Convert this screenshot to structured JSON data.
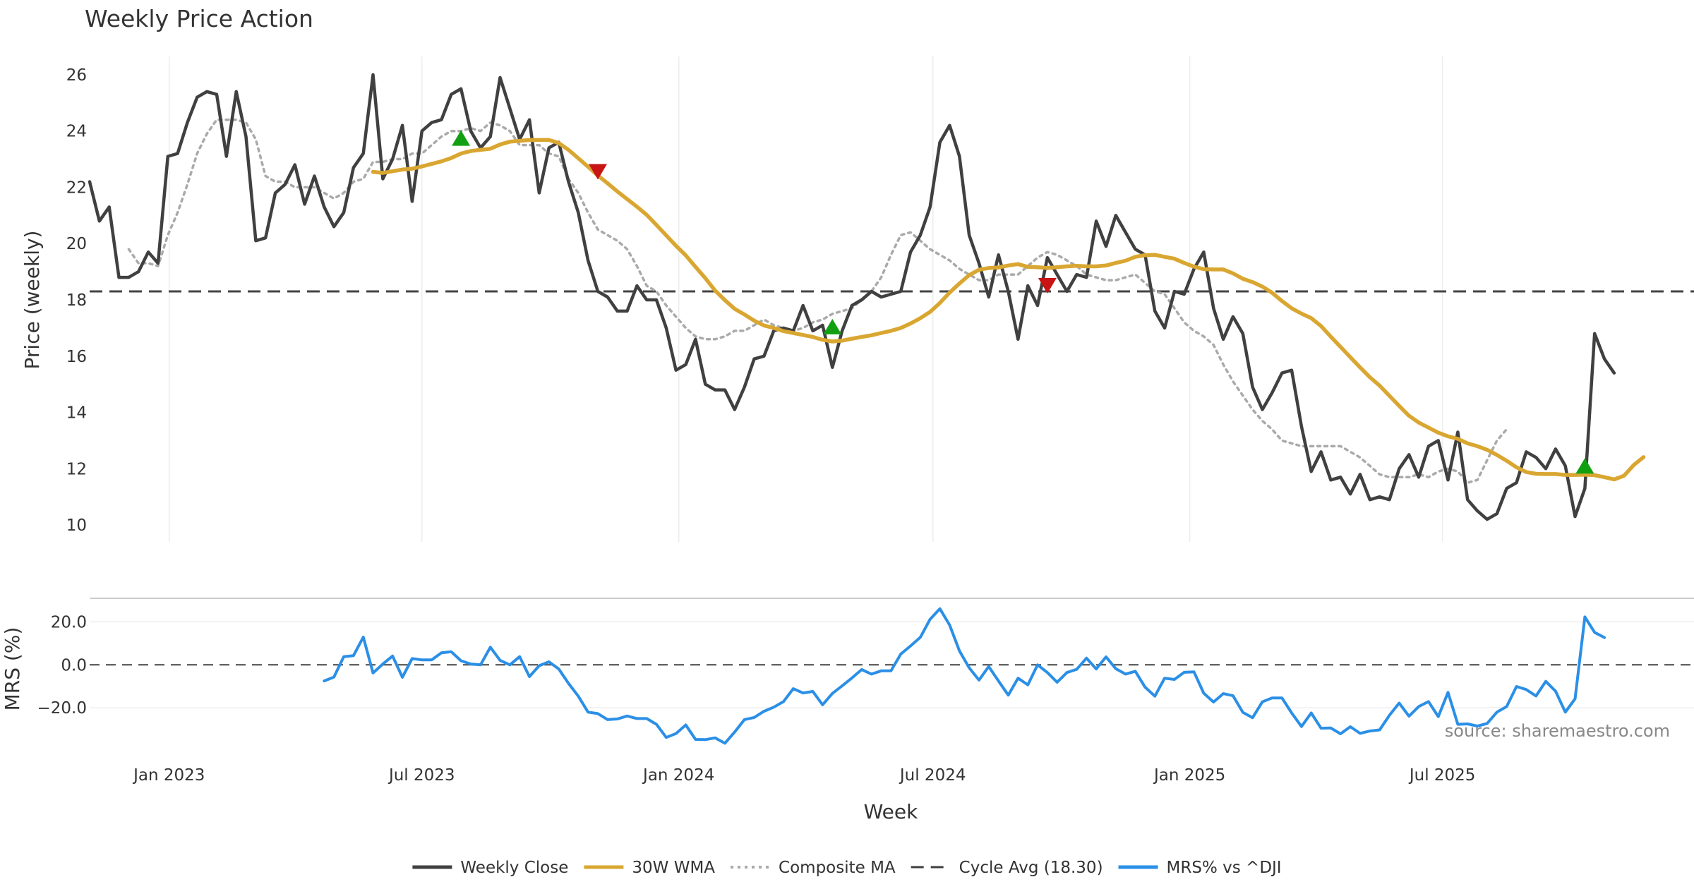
{
  "chart_data": [
    {
      "type": "line",
      "title": "Weekly Price Action",
      "ylabel": "Price (weekly)",
      "ylim": [
        9.4,
        27.0
      ],
      "yticks": [
        10,
        12,
        14,
        16,
        18,
        20,
        22,
        24,
        26
      ],
      "x_start": "2022-11-05",
      "x_step_days": 7,
      "xlim": [
        "2022-11-05",
        "2025-12-13"
      ],
      "xticks": [
        {
          "date": "2023-01-01",
          "label": "Jan 2023"
        },
        {
          "date": "2023-07-01",
          "label": "Jul 2023"
        },
        {
          "date": "2024-01-01",
          "label": "Jan 2024"
        },
        {
          "date": "2024-07-01",
          "label": "Jul 2024"
        },
        {
          "date": "2025-01-01",
          "label": "Jan 2025"
        },
        {
          "date": "2025-07-01",
          "label": "Jul 2025"
        }
      ],
      "cycle_avg": 18.3,
      "series": [
        {
          "name": "Weekly Close",
          "color": "#404040",
          "start_index": 0,
          "values": [
            22.2,
            20.8,
            21.3,
            18.8,
            18.8,
            19.0,
            19.7,
            19.3,
            23.1,
            23.2,
            24.3,
            25.2,
            25.4,
            25.3,
            23.1,
            25.4,
            23.8,
            20.1,
            20.2,
            21.8,
            22.1,
            22.8,
            21.4,
            22.4,
            21.3,
            20.6,
            21.1,
            22.7,
            23.2,
            26.0,
            22.3,
            23.0,
            24.2,
            21.5,
            24.0,
            24.3,
            24.4,
            25.3,
            25.5,
            24.0,
            23.4,
            23.8,
            25.9,
            24.8,
            23.7,
            24.4,
            21.8,
            23.4,
            23.6,
            22.2,
            21.1,
            19.4,
            18.3,
            18.1,
            17.6,
            17.6,
            18.5,
            18.0,
            18.0,
            17.0,
            15.5,
            15.7,
            16.6,
            15.0,
            14.8,
            14.8,
            14.1,
            14.9,
            15.9,
            16.0,
            16.9,
            17.0,
            16.9,
            17.8,
            16.9,
            17.1,
            15.6,
            16.9,
            17.8,
            18.0,
            18.3,
            18.1,
            18.2,
            18.3,
            19.7,
            20.3,
            21.3,
            23.6,
            24.2,
            23.1,
            20.3,
            19.3,
            18.1,
            19.6,
            18.3,
            16.6,
            18.5,
            17.8,
            19.5,
            18.9,
            18.3,
            18.9,
            18.8,
            20.8,
            19.9,
            21.0,
            20.4,
            19.8,
            19.6,
            17.6,
            17.0,
            18.3,
            18.2,
            19.1,
            19.7,
            17.7,
            16.6,
            17.4,
            16.8,
            14.9,
            14.1,
            14.7,
            15.4,
            15.5,
            13.5,
            11.9,
            12.6,
            11.6,
            11.7,
            11.1,
            11.8,
            10.9,
            11.0,
            10.9,
            12.0,
            12.5,
            11.7,
            12.8,
            13.0,
            11.6,
            13.3,
            10.9,
            10.5,
            10.2,
            10.4,
            11.3,
            11.5,
            12.6,
            12.4,
            12.0,
            12.7,
            12.1,
            10.3,
            11.3,
            16.8,
            15.9,
            15.4
          ]
        },
        {
          "name": "30W WMA",
          "color": "#d9a731",
          "start_index": 29,
          "values": [
            22.55,
            22.51,
            22.57,
            22.63,
            22.66,
            22.74,
            22.83,
            22.92,
            23.04,
            23.2,
            23.29,
            23.33,
            23.37,
            23.52,
            23.62,
            23.65,
            23.68,
            23.68,
            23.68,
            23.57,
            23.33,
            23.03,
            22.73,
            22.42,
            22.14,
            21.85,
            21.58,
            21.31,
            21.02,
            20.66,
            20.29,
            19.92,
            19.58,
            19.17,
            18.77,
            18.33,
            17.99,
            17.68,
            17.48,
            17.26,
            17.09,
            17.0,
            16.89,
            16.82,
            16.75,
            16.68,
            16.58,
            16.52,
            16.55,
            16.62,
            16.68,
            16.74,
            16.82,
            16.9,
            17.0,
            17.16,
            17.35,
            17.57,
            17.89,
            18.26,
            18.58,
            18.88,
            19.07,
            19.13,
            19.15,
            19.22,
            19.27,
            19.17,
            19.16,
            19.13,
            19.16,
            19.19,
            19.21,
            19.19,
            19.19,
            19.22,
            19.31,
            19.39,
            19.53,
            19.59,
            19.6,
            19.53,
            19.46,
            19.31,
            19.18,
            19.09,
            19.08,
            19.08,
            18.94,
            18.75,
            18.63,
            18.47,
            18.25,
            17.96,
            17.7,
            17.51,
            17.35,
            17.07,
            16.69,
            16.33,
            15.96,
            15.6,
            15.25,
            14.95,
            14.59,
            14.23,
            13.88,
            13.64,
            13.46,
            13.28,
            13.15,
            13.06,
            12.9,
            12.8,
            12.67,
            12.49,
            12.28,
            12.05,
            11.88,
            11.82,
            11.81,
            11.81,
            11.78,
            11.78,
            11.79,
            11.77,
            11.7,
            11.62,
            11.75,
            12.13,
            12.41
          ]
        },
        {
          "name": "Composite MA",
          "color": "#aaaaaa",
          "start_index": 4,
          "values": [
            19.8,
            19.3,
            19.3,
            19.2,
            20.3,
            21.1,
            22.1,
            23.2,
            23.9,
            24.4,
            24.4,
            24.4,
            24.3,
            23.7,
            22.4,
            22.2,
            22.2,
            22.0,
            22.0,
            22.0,
            21.8,
            21.6,
            21.8,
            22.2,
            22.3,
            22.9,
            22.9,
            23.0,
            23.0,
            23.2,
            23.2,
            23.5,
            23.8,
            24.0,
            24.0,
            24.1,
            24.0,
            24.3,
            24.2,
            24.0,
            23.5,
            23.5,
            23.5,
            23.2,
            23.1,
            22.3,
            21.8,
            21.1,
            20.5,
            20.3,
            20.1,
            19.8,
            19.2,
            18.5,
            18.3,
            17.8,
            17.4,
            17.0,
            16.7,
            16.6,
            16.6,
            16.7,
            16.9,
            16.9,
            17.1,
            17.3,
            17.1,
            17.0,
            16.9,
            17.0,
            17.2,
            17.3,
            17.5,
            17.6,
            17.7,
            18.0,
            18.3,
            18.8,
            19.6,
            20.3,
            20.4,
            20.1,
            19.8,
            19.6,
            19.4,
            19.1,
            18.9,
            18.7,
            18.7,
            18.9,
            18.9,
            18.9,
            19.2,
            19.5,
            19.7,
            19.6,
            19.4,
            19.2,
            18.9,
            18.8,
            18.7,
            18.7,
            18.8,
            18.9,
            18.6,
            18.3,
            18.2,
            17.7,
            17.2,
            16.9,
            16.7,
            16.4,
            15.7,
            15.1,
            14.6,
            14.1,
            13.7,
            13.4,
            13.0,
            12.9,
            12.8,
            12.8,
            12.8,
            12.8,
            12.8,
            12.6,
            12.4,
            12.1,
            11.8,
            11.7,
            11.7,
            11.7,
            11.8,
            11.7,
            11.9,
            12.0,
            11.9,
            11.5,
            11.6,
            12.3,
            13.0,
            13.4
          ]
        }
      ],
      "signals": [
        {
          "index": 38,
          "value": 23.75,
          "type": "buy",
          "color": "#12a012"
        },
        {
          "index": 52,
          "value": 22.55,
          "type": "sell",
          "color": "#c81414"
        },
        {
          "index": 76,
          "value": 17.05,
          "type": "buy",
          "color": "#12a012"
        },
        {
          "index": 98,
          "value": 18.5,
          "type": "sell",
          "color": "#c81414"
        },
        {
          "index": 153,
          "value": 12.1,
          "type": "buy",
          "color": "#12a012"
        }
      ]
    },
    {
      "type": "line",
      "ylabel": "MRS (%)",
      "xlabel": "Week",
      "ylim": [
        -38,
        28
      ],
      "yticks": [
        20,
        0,
        -20
      ],
      "ytick_labels": [
        "20.0",
        "0.0",
        "−20.0"
      ],
      "zero_line": 0,
      "series": [
        {
          "name": "MRS% vs ^DJI",
          "color": "#2b8fe6",
          "start_index": 24,
          "values": [
            -7.5,
            -5.7,
            3.8,
            4.3,
            12.9,
            -3.8,
            0.4,
            4.1,
            -5.8,
            2.9,
            2.3,
            2.3,
            5.6,
            6.1,
            1.9,
            0.4,
            0.0,
            8.2,
            2.1,
            0.0,
            3.8,
            -5.5,
            -0.4,
            1.4,
            -1.9,
            -8.6,
            -14.6,
            -22.0,
            -22.7,
            -25.5,
            -25.2,
            -23.8,
            -25.0,
            -25.0,
            -27.7,
            -33.8,
            -32.0,
            -28.0,
            -34.7,
            -34.8,
            -34.0,
            -36.5,
            -31.3,
            -25.5,
            -24.5,
            -21.6,
            -19.7,
            -17.1,
            -11.1,
            -13.1,
            -12.4,
            -18.6,
            -13.3,
            -9.8,
            -6.1,
            -2.2,
            -4.3,
            -2.8,
            -2.8,
            5.0,
            8.8,
            12.8,
            21.2,
            26.1,
            18.5,
            6.5,
            -1.4,
            -7.1,
            -0.8,
            -7.5,
            -14.1,
            -6.2,
            -9.3,
            0.0,
            -3.6,
            -8.1,
            -3.6,
            -2.1,
            3.1,
            -1.9,
            3.7,
            -1.8,
            -4.3,
            -3.0,
            -10.4,
            -14.6,
            -6.2,
            -6.8,
            -3.5,
            -3.3,
            -13.2,
            -17.3,
            -13.4,
            -14.4,
            -22.1,
            -24.6,
            -17.2,
            -15.4,
            -15.4,
            -22.4,
            -28.7,
            -22.4,
            -29.5,
            -29.4,
            -32.1,
            -28.8,
            -31.9,
            -30.8,
            -30.3,
            -23.5,
            -17.8,
            -23.9,
            -19.4,
            -17.1,
            -24.1,
            -12.8,
            -27.7,
            -27.5,
            -28.5,
            -27.3,
            -22.0,
            -19.4,
            -10.1,
            -11.5,
            -14.5,
            -7.7,
            -12.3,
            -22.0,
            -15.8,
            22.3,
            15.1,
            12.7
          ]
        }
      ]
    }
  ],
  "legend": [
    {
      "label": "Weekly Close",
      "color": "#404040",
      "style": "solid"
    },
    {
      "label": "30W WMA",
      "color": "#d9a731",
      "style": "solid"
    },
    {
      "label": "Composite MA",
      "color": "#aaaaaa",
      "style": "dotted"
    },
    {
      "label": "Cycle Avg (18.30)",
      "color": "#404040",
      "style": "dashed"
    },
    {
      "label": "MRS% vs ^DJI",
      "color": "#2b8fe6",
      "style": "solid"
    }
  ],
  "source": "source: sharemaestro.com"
}
